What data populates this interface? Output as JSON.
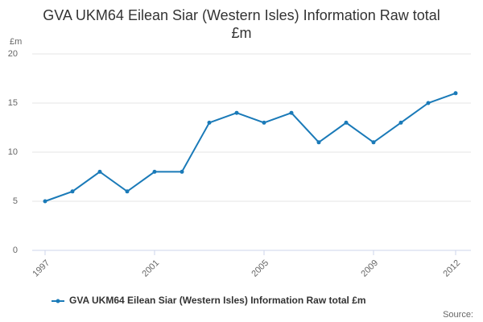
{
  "chart_data": {
    "type": "line",
    "title": "GVA UKM64 Eilean Siar (Western Isles) Information Raw total £m",
    "y_label": "£m",
    "source": "Source:",
    "x": [
      1997,
      1998,
      1999,
      2000,
      2001,
      2002,
      2003,
      2004,
      2005,
      2006,
      2007,
      2008,
      2009,
      2010,
      2011,
      2012
    ],
    "series": [
      {
        "name": "GVA UKM64 Eilean Siar (Western Isles) Information Raw total £m",
        "color": "#1a7ab8",
        "values": [
          5,
          6,
          8,
          6,
          8,
          8,
          13,
          14,
          13,
          14,
          11,
          13,
          11,
          13,
          15,
          16
        ]
      }
    ],
    "xlim": [
      1997,
      2012
    ],
    "xticks": [
      1997,
      2001,
      2005,
      2009,
      2012
    ],
    "ylim": [
      0,
      20
    ],
    "yticks": [
      0,
      5,
      10,
      15,
      20
    ],
    "grid": true
  }
}
